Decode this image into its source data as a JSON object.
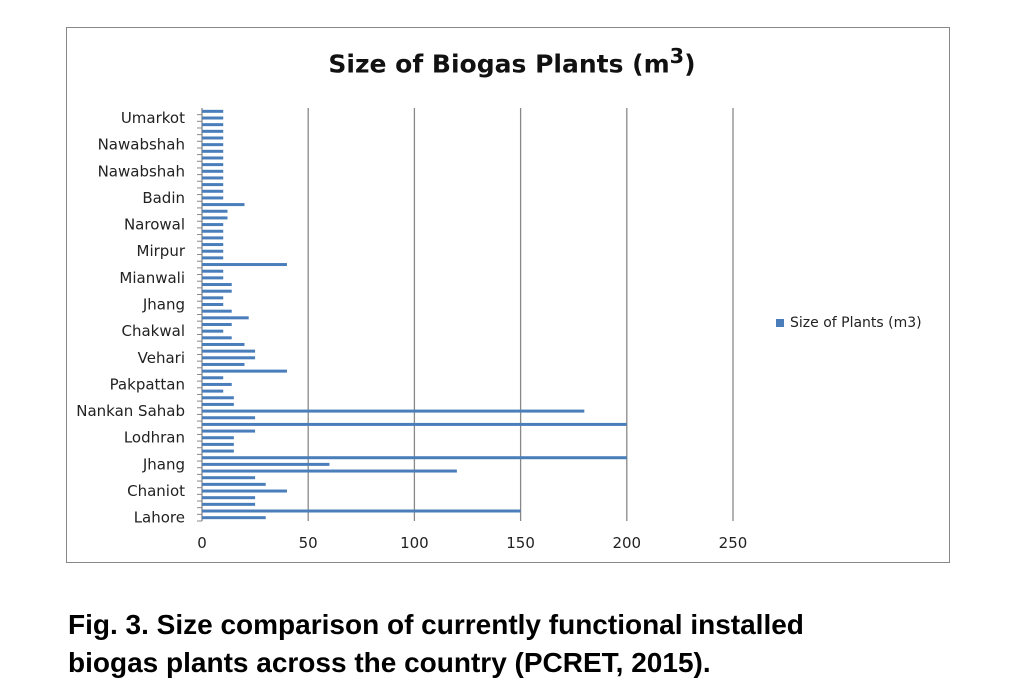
{
  "chart_data": {
    "type": "bar",
    "orientation": "horizontal",
    "title": "Size of Biogas Plants (m3)",
    "title_base": "Size of Biogas Plants (m",
    "title_sup": "3",
    "title_end": ")",
    "xlabel": "",
    "ylabel": "",
    "xlim": [
      0,
      250
    ],
    "xticks": [
      0,
      50,
      100,
      150,
      200,
      250
    ],
    "grid": true,
    "legend_position": "right",
    "series": [
      {
        "name": "Size of Plants (m3)",
        "color": "#4a7ebb"
      }
    ],
    "categories": [
      "Lahore",
      "",
      "",
      "",
      "Chaniot",
      "",
      "",
      "",
      "Jhang",
      "",
      "",
      "",
      "Lodhran",
      "",
      "",
      "",
      "Nankan Sahab",
      "",
      "",
      "",
      "Pakpattan",
      "",
      "",
      "",
      "Vehari",
      "",
      "",
      "",
      "Chakwal",
      "",
      "",
      "",
      "Jhang",
      "",
      "",
      "",
      "Mianwali",
      "",
      "",
      "",
      "Mirpur",
      "",
      "",
      "",
      "Narowal",
      "",
      "",
      "",
      "Badin",
      "",
      "",
      "",
      "Nawabshah",
      "",
      "",
      "",
      "Nawabshah",
      "",
      "",
      "",
      "Umarkot",
      ""
    ],
    "values": [
      30,
      150,
      25,
      25,
      40,
      30,
      25,
      120,
      60,
      200,
      15,
      15,
      15,
      25,
      200,
      25,
      180,
      15,
      15,
      10,
      14,
      10,
      40,
      20,
      25,
      25,
      20,
      14,
      10,
      14,
      22,
      14,
      10,
      10,
      14,
      14,
      10,
      10,
      40,
      10,
      10,
      10,
      10,
      10,
      10,
      12,
      12,
      20,
      10,
      10,
      10,
      10,
      10,
      10,
      10,
      10,
      10,
      10,
      10,
      10,
      10,
      10
    ]
  },
  "caption": {
    "line1": "Fig. 3. Size comparison of currently functional installed",
    "line2": "biogas plants across the country (PCRET, 2015)."
  }
}
